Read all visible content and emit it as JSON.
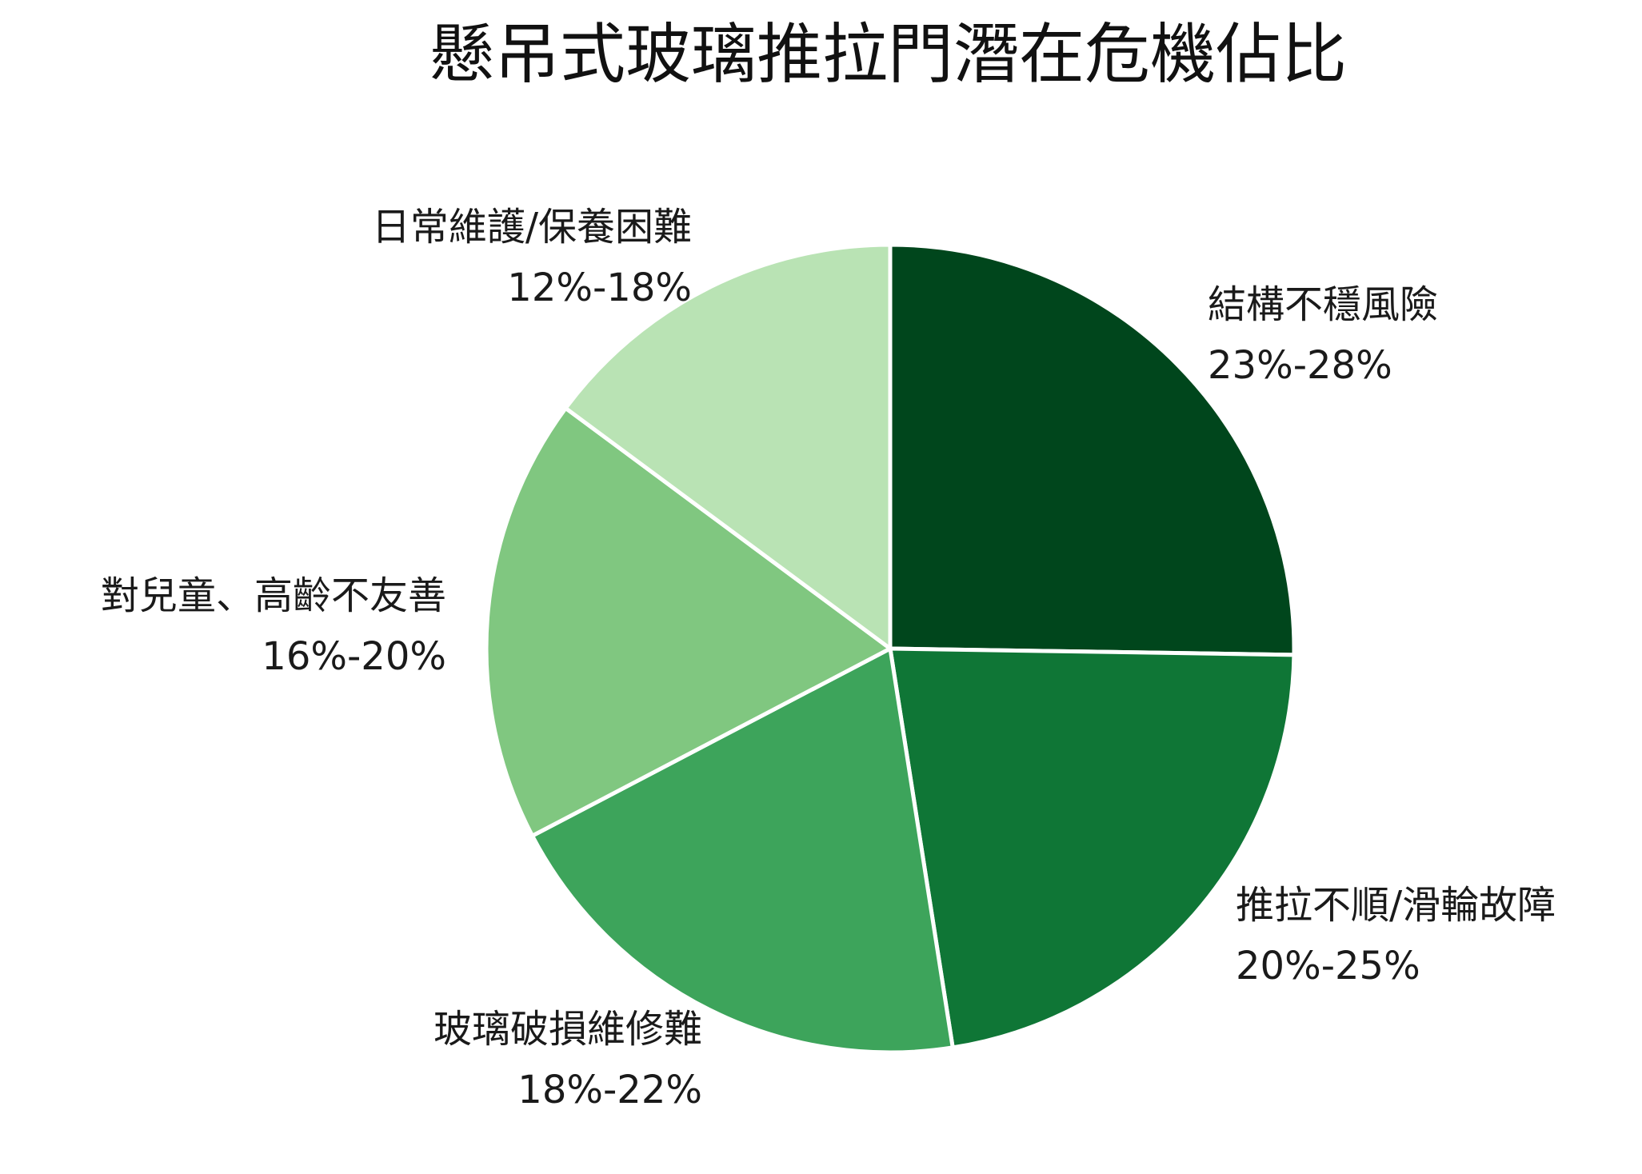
{
  "chart_data": {
    "type": "pie",
    "title": "懸吊式玻璃推拉門潛在危機佔比",
    "slices": [
      {
        "label": "結構不穩風險",
        "range": "23%-28%",
        "value": 25.5,
        "color": "#00461c"
      },
      {
        "label": "推拉不順/滑輪故障",
        "range": "20%-25%",
        "value": 22.5,
        "color": "#0f7636"
      },
      {
        "label": "玻璃破損維修難",
        "range": "18%-22%",
        "value": 20,
        "color": "#3da45b"
      },
      {
        "label": "對兒童、高齡不友善",
        "range": "16%-20%",
        "value": 18,
        "color": "#80c780"
      },
      {
        "label": "日常維護/保養困難",
        "range": "12%-18%",
        "value": 15,
        "color": "#b9e3b4"
      }
    ],
    "start": "12 o'clock",
    "direction": "clockwise",
    "legend": "none (labels placed beside each slice)"
  }
}
